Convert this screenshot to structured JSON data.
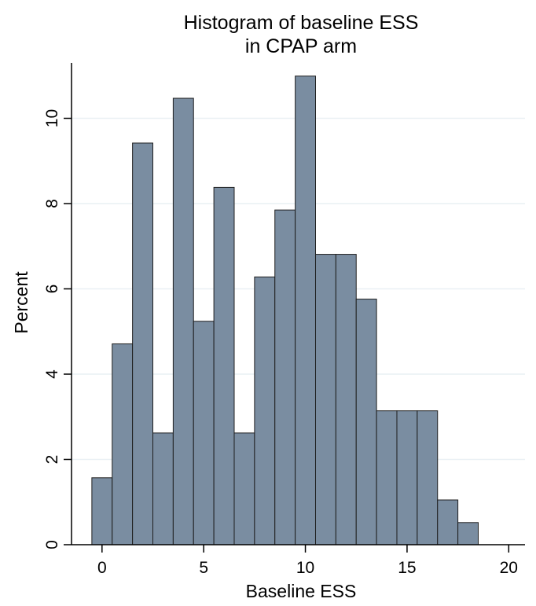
{
  "chart_data": {
    "type": "bar",
    "title_lines": [
      "Histogram of baseline ESS",
      "in CPAP arm"
    ],
    "xlabel": "Baseline ESS",
    "ylabel": "Percent",
    "bin_width": 1,
    "bins": [
      {
        "center": 0,
        "value": 1.57
      },
      {
        "center": 1,
        "value": 4.71
      },
      {
        "center": 2,
        "value": 9.42
      },
      {
        "center": 3,
        "value": 2.62
      },
      {
        "center": 4,
        "value": 10.47
      },
      {
        "center": 5,
        "value": 5.24
      },
      {
        "center": 6,
        "value": 8.38
      },
      {
        "center": 7,
        "value": 2.62
      },
      {
        "center": 8,
        "value": 6.28
      },
      {
        "center": 9,
        "value": 7.85
      },
      {
        "center": 10,
        "value": 10.99
      },
      {
        "center": 11,
        "value": 6.81
      },
      {
        "center": 12,
        "value": 6.81
      },
      {
        "center": 13,
        "value": 5.76
      },
      {
        "center": 14,
        "value": 3.14
      },
      {
        "center": 15,
        "value": 3.14
      },
      {
        "center": 16,
        "value": 3.14
      },
      {
        "center": 17,
        "value": 1.05
      },
      {
        "center": 18,
        "value": 0.52
      }
    ],
    "x_ticks": [
      "0",
      "5",
      "10",
      "15",
      "20"
    ],
    "y_ticks": [
      "0",
      "2",
      "4",
      "6",
      "8",
      "10"
    ],
    "xlim": [
      -1.5,
      20.8
    ],
    "ylim": [
      0,
      11.3
    ],
    "grid": "horizontal",
    "bar_color": "#7a8da1",
    "bar_edge_color": "#1f1f1f",
    "grid_color": "#e9f0f4"
  }
}
